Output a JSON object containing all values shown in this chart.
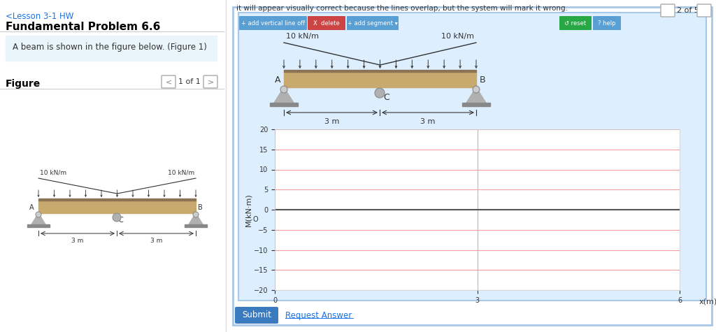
{
  "breadcrumb_text": "<Lesson 3-1 HW",
  "breadcrumb_color": "#1a73e8",
  "title_text": "Fundamental Problem 6.6",
  "title_color": "#000000",
  "nav_page": "2 of 5",
  "problem_text": "A beam is shown in the figure below. (Figure 1)",
  "figure_label": "Figure",
  "figure_nav": "1 of 1",
  "warning_text": "it will appear visually correct because the lines overlap, but the system will mark it wrong.",
  "beam_label_left": "10 kN/m",
  "beam_label_right": "10 kN/m",
  "plot_ylabel": "M(kN·m)",
  "plot_xlabel": "x(m)",
  "plot_yticks": [
    20,
    15,
    10,
    5,
    0,
    -5,
    -10,
    -15,
    -20
  ],
  "plot_xticks": [
    0,
    3,
    6
  ],
  "plot_xlim": [
    0,
    6
  ],
  "plot_ylim": [
    -20,
    20
  ],
  "plot_grid_color": "#f5a0a0",
  "plot_axis_color": "#555555",
  "panel_border_color": "#a8c8e8",
  "submit_btn_color": "#3a7abf",
  "submit_text": "Submit",
  "request_text": "Request Answer"
}
